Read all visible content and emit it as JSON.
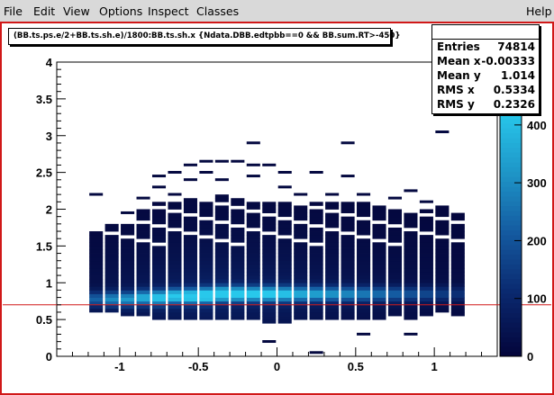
{
  "menubar": {
    "file": "File",
    "edit": "Edit",
    "view": "View",
    "options": "Options",
    "inspect": "Inspect",
    "classes": "Classes",
    "help": "Help"
  },
  "title": "(BB.ts.ps.e/2+BB.ts.sh.e)/1800:BB.ts.sh.x {Ndata.DBB.edtpbb==0 && BB.sum.RT>-450}",
  "stats": {
    "entries_label": "Entries",
    "entries_value": "74814",
    "meanx_label": "Mean x",
    "meanx_value": "-0.00333",
    "meany_label": "Mean y",
    "meany_value": "1.014",
    "rmsx_label": "RMS x",
    "rmsx_value": "0.5334",
    "rmsy_label": "RMS y",
    "rmsy_value": "0.2326"
  },
  "chart_data": {
    "type": "heatmap",
    "xlim": [
      -1.4,
      1.4
    ],
    "ylim": [
      0,
      4
    ],
    "x_ticks": [
      -1,
      -0.5,
      0,
      0.5,
      1
    ],
    "x_tick_labels": [
      "-1",
      "-0.5",
      "0",
      "0.5",
      "1"
    ],
    "y_ticks": [
      0,
      0.5,
      1,
      1.5,
      2,
      2.5,
      3,
      3.5,
      4
    ],
    "y_tick_labels": [
      "0",
      "0.5",
      "1",
      "1.5",
      "2",
      "2.5",
      "3",
      "3.5",
      "4"
    ],
    "z_ticks": [
      0,
      100,
      200,
      300,
      400
    ],
    "z_tick_labels": [
      "0",
      "100",
      "200",
      "300",
      "400"
    ],
    "zlim": [
      0,
      420
    ],
    "reference_line_y": 0.7,
    "columns": [
      {
        "x": -1.15,
        "y_low": 0.6,
        "y_high": 1.75,
        "peak": 0.78,
        "max": 180,
        "sparse": [
          2.2
        ]
      },
      {
        "x": -1.05,
        "y_low": 0.6,
        "y_high": 1.8,
        "peak": 0.78,
        "max": 240,
        "sparse": []
      },
      {
        "x": -0.95,
        "y_low": 0.55,
        "y_high": 1.8,
        "peak": 0.78,
        "max": 260,
        "sparse": [
          1.95
        ]
      },
      {
        "x": -0.85,
        "y_low": 0.55,
        "y_high": 2.0,
        "peak": 0.8,
        "max": 300,
        "sparse": [
          2.15
        ]
      },
      {
        "x": -0.75,
        "y_low": 0.5,
        "y_high": 2.1,
        "peak": 0.8,
        "max": 340,
        "sparse": [
          2.45,
          2.3
        ]
      },
      {
        "x": -0.65,
        "y_low": 0.5,
        "y_high": 2.1,
        "peak": 0.82,
        "max": 360,
        "sparse": [
          2.5,
          2.2
        ]
      },
      {
        "x": -0.55,
        "y_low": 0.5,
        "y_high": 2.15,
        "peak": 0.82,
        "max": 390,
        "sparse": [
          2.6,
          2.4
        ]
      },
      {
        "x": -0.45,
        "y_low": 0.5,
        "y_high": 2.15,
        "peak": 0.83,
        "max": 420,
        "sparse": [
          2.65,
          2.5
        ]
      },
      {
        "x": -0.35,
        "y_low": 0.5,
        "y_high": 2.2,
        "peak": 0.85,
        "max": 400,
        "sparse": [
          2.65,
          2.4
        ]
      },
      {
        "x": -0.25,
        "y_low": 0.5,
        "y_high": 2.15,
        "peak": 0.85,
        "max": 380,
        "sparse": [
          2.65
        ]
      },
      {
        "x": -0.15,
        "y_low": 0.5,
        "y_high": 2.1,
        "peak": 0.85,
        "max": 360,
        "sparse": [
          2.9,
          2.6,
          2.45
        ]
      },
      {
        "x": -0.05,
        "y_low": 0.45,
        "y_high": 2.1,
        "peak": 0.85,
        "max": 360,
        "sparse": [
          2.6,
          0.2
        ]
      },
      {
        "x": 0.05,
        "y_low": 0.45,
        "y_high": 2.1,
        "peak": 0.85,
        "max": 340,
        "sparse": [
          2.5,
          2.3
        ]
      },
      {
        "x": 0.15,
        "y_low": 0.5,
        "y_high": 2.1,
        "peak": 0.85,
        "max": 300,
        "sparse": [
          2.2
        ]
      },
      {
        "x": 0.25,
        "y_low": 0.5,
        "y_high": 2.1,
        "peak": 0.85,
        "max": 280,
        "sparse": [
          2.5,
          0.05
        ]
      },
      {
        "x": 0.35,
        "y_low": 0.5,
        "y_high": 2.1,
        "peak": 0.85,
        "max": 260,
        "sparse": [
          2.2
        ]
      },
      {
        "x": 0.45,
        "y_low": 0.5,
        "y_high": 2.1,
        "peak": 0.85,
        "max": 240,
        "sparse": [
          2.9,
          2.45
        ]
      },
      {
        "x": 0.55,
        "y_low": 0.5,
        "y_high": 2.1,
        "peak": 0.85,
        "max": 220,
        "sparse": [
          2.2,
          0.3
        ]
      },
      {
        "x": 0.65,
        "y_low": 0.5,
        "y_high": 2.1,
        "peak": 0.85,
        "max": 200,
        "sparse": [
          2.0
        ]
      },
      {
        "x": 0.75,
        "y_low": 0.55,
        "y_high": 2.0,
        "peak": 0.85,
        "max": 180,
        "sparse": [
          2.15
        ]
      },
      {
        "x": 0.85,
        "y_low": 0.5,
        "y_high": 2.0,
        "peak": 0.85,
        "max": 160,
        "sparse": [
          2.25,
          0.3
        ]
      },
      {
        "x": 0.95,
        "y_low": 0.55,
        "y_high": 2.0,
        "peak": 0.85,
        "max": 140,
        "sparse": [
          2.1
        ]
      },
      {
        "x": 1.05,
        "y_low": 0.6,
        "y_high": 2.05,
        "peak": 0.85,
        "max": 120,
        "sparse": [
          3.05
        ]
      },
      {
        "x": 1.15,
        "y_low": 0.55,
        "y_high": 1.95,
        "peak": 0.85,
        "max": 100,
        "sparse": []
      }
    ]
  }
}
